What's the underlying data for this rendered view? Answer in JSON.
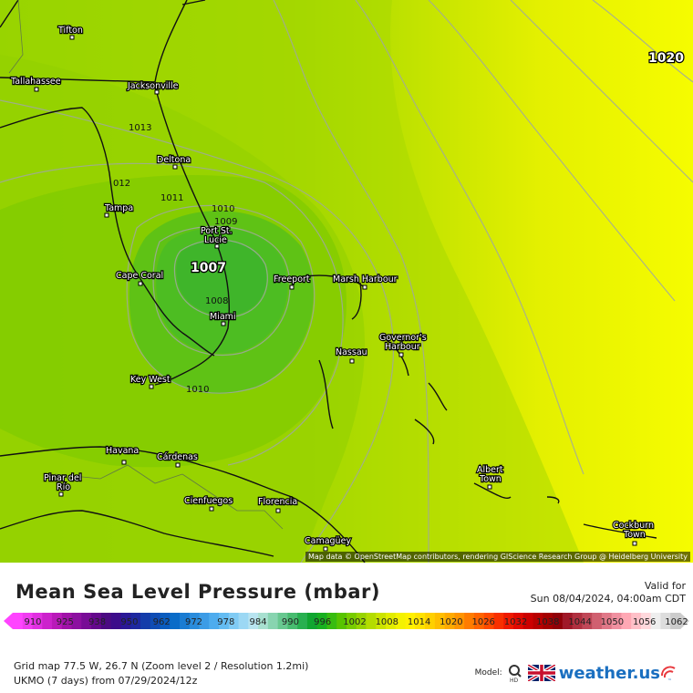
{
  "map": {
    "cities": [
      {
        "name": "Tifton"
      },
      {
        "name": "Tallahassee"
      },
      {
        "name": "Jacksonville"
      },
      {
        "name": "Deltona"
      },
      {
        "name": "Tampa"
      },
      {
        "name": "Port St.\nLucie"
      },
      {
        "name": "Cape Coral"
      },
      {
        "name": "Miami"
      },
      {
        "name": "Freeport"
      },
      {
        "name": "Marsh Harbour"
      },
      {
        "name": "Key West"
      },
      {
        "name": "Nassau"
      },
      {
        "name": "Governor's\nHarbour"
      },
      {
        "name": "Havana"
      },
      {
        "name": "Cárdenas"
      },
      {
        "name": "Pinar del\nRío"
      },
      {
        "name": "Cienfuegos"
      },
      {
        "name": "Florencia"
      },
      {
        "name": "Camagüey"
      },
      {
        "name": "Albert\nTown"
      },
      {
        "name": "Cockburn\nTown"
      }
    ],
    "isobar_labels": [
      "1013",
      "1011",
      "1010",
      "1009",
      "1008",
      "1010",
      "012"
    ],
    "pressure_labels": [
      "1007",
      "1020"
    ],
    "attribution": "Map data © OpenStreetMap contributors, rendering GIScience Research Group @ Heidelberg University"
  },
  "legend": {
    "title": "Mean Sea Level Pressure (mbar)",
    "valid_label": "Valid for",
    "valid_time": "Sun 08/04/2024, 04:00am CDT",
    "scale_labels": [
      "910",
      "925",
      "938",
      "950",
      "962",
      "972",
      "978",
      "984",
      "990",
      "996",
      "1002",
      "1008",
      "1014",
      "1020",
      "1026",
      "1032",
      "1038",
      "1044",
      "1050",
      "1056",
      "1062"
    ],
    "scale_colors": [
      "#ff44ff",
      "#f03cf0",
      "#e030e0",
      "#cc22cc",
      "#b91ab9",
      "#a012a8",
      "#8c10a0",
      "#780c96",
      "#64088c",
      "#4b0a82",
      "#3c0c8a",
      "#2a1896",
      "#1e28a0",
      "#143caa",
      "#0f4cb4",
      "#0a5cbe",
      "#0a6cc8",
      "#1a7cd2",
      "#2a8cdc",
      "#3c9ce6",
      "#4eacee",
      "#64bcf2",
      "#80cbf4",
      "#9cd8f4",
      "#b8e4f0",
      "#a8e0d0",
      "#88d4b0",
      "#68c890",
      "#48bc70",
      "#28b050",
      "#10a630",
      "#18b020",
      "#38bc10",
      "#58c400",
      "#78cc00",
      "#98d400",
      "#b4dc00",
      "#cce400",
      "#e2ec00",
      "#f4f200",
      "#fff000",
      "#ffe200",
      "#ffd000",
      "#ffbe00",
      "#ffaa00",
      "#ff9400",
      "#ff7c00",
      "#ff6400",
      "#ff4a00",
      "#f83000",
      "#ee1a00",
      "#e00a00",
      "#cc0000",
      "#b80000",
      "#a40000",
      "#900008",
      "#a01828",
      "#b03040",
      "#c04858",
      "#d06070",
      "#e07888",
      "#f090a0",
      "#ffa8b4",
      "#ffc0c8",
      "#ffd8dc",
      "#eeeeee",
      "#dddddd",
      "#cccccc"
    ],
    "grid_info": "Grid map 77.5 W, 26.7 N (Zoom level 2 / Resolution 1.2mi)",
    "model_info": "UKMO (7 days)  from  07/29/2024/12z",
    "model_label": "Model:",
    "hd_label": "HD",
    "brand_name": "weather.us",
    "brand_tm": "™",
    "brand_color": "#1a6fc0",
    "colors": {
      "low_center": "#3fbd2a",
      "mid": "#7fd000",
      "high": "#f2fb00"
    }
  }
}
